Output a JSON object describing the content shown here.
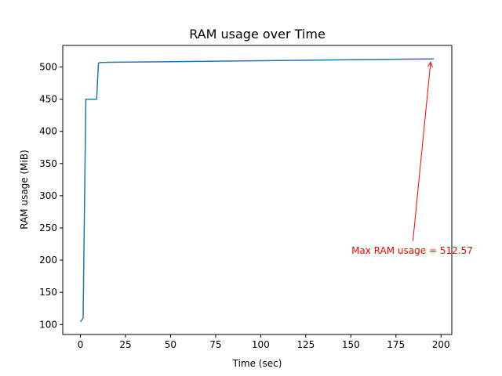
{
  "chart_data": {
    "type": "line",
    "title": "RAM usage over Time",
    "xlabel": "Time (sec)",
    "ylabel": "RAM usage (MiB)",
    "xlim": [
      -9.8,
      206
    ],
    "ylim": [
      84.5,
      533.5
    ],
    "x_ticks": [
      0,
      25,
      50,
      75,
      100,
      125,
      150,
      175,
      200
    ],
    "y_ticks": [
      100,
      150,
      200,
      250,
      300,
      350,
      400,
      450,
      500
    ],
    "grid": false,
    "series": [
      {
        "color": "#1f77b4",
        "x": [
          0,
          1.5,
          3,
          4,
          5,
          6,
          7,
          8,
          9,
          10,
          11,
          13,
          20,
          40,
          60,
          80,
          100,
          120,
          140,
          160,
          180,
          196
        ],
        "y": [
          104,
          110,
          450,
          450,
          450,
          450,
          450,
          450,
          450,
          506,
          507,
          507.2,
          507.5,
          508,
          508.6,
          509.2,
          509.8,
          510.4,
          511,
          511.6,
          512.2,
          512.57
        ]
      }
    ],
    "annotation": {
      "text": "Max RAM usage = 512.57",
      "point": [
        196,
        512.57
      ],
      "text_pos": [
        184,
        215
      ],
      "color": "#ff0000"
    }
  }
}
